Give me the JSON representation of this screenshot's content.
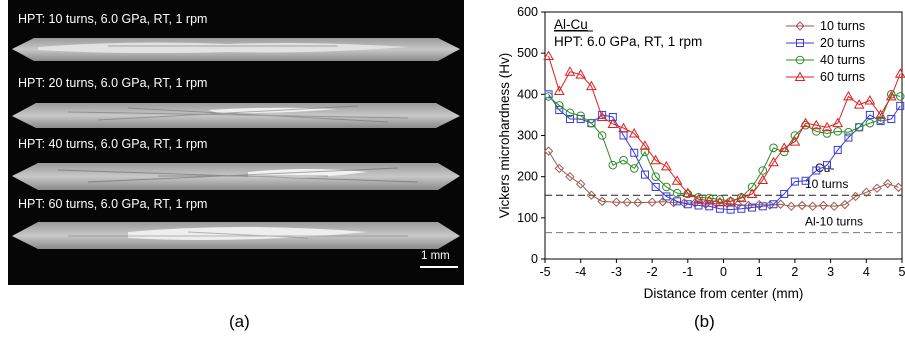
{
  "micrographs": {
    "strips": [
      {
        "label": "HPT: 10 turns, 6.0 GPa, RT, 1 rpm"
      },
      {
        "label": "HPT: 20 turns, 6.0 GPa, RT, 1 rpm"
      },
      {
        "label": "HPT: 40 turns, 6.0 GPa, RT, 1 rpm"
      },
      {
        "label": "HPT: 60 turns, 6.0 GPa, RT, 1 rpm"
      }
    ],
    "scale_bar_label": "1 mm",
    "panel_label": "(a)"
  },
  "chart_panel_label": "(b)",
  "chart_data": {
    "type": "line",
    "annotation": {
      "line1": "Al-Cu",
      "line2": "HPT: 6.0 GPa, RT, 1 rpm"
    },
    "xlabel": "Distance from center (mm)",
    "ylabel": "Vickers microhardness (Hv)",
    "xlim": [
      -5,
      5
    ],
    "ylim": [
      0,
      600
    ],
    "xticks": [
      -5,
      -4,
      -3,
      -2,
      -1,
      0,
      1,
      2,
      3,
      4,
      5
    ],
    "yticks": [
      0,
      100,
      200,
      300,
      400,
      500,
      600
    ],
    "grid": false,
    "legend_position": "top-right",
    "reference_lines": [
      {
        "label_line1": "Cu-",
        "label_line2": "10 turns",
        "y": 155
      },
      {
        "label_line1": "Al-10 turns",
        "label_line2": "",
        "y": 64
      }
    ],
    "series": [
      {
        "name": "10 turns",
        "color": "#9b5a52",
        "marker": "diamond",
        "x": [
          -4.9,
          -4.6,
          -4.3,
          -4.0,
          -3.7,
          -3.4,
          -3.0,
          -2.7,
          -2.4,
          -2.0,
          -1.7,
          -1.4,
          -1.1,
          -0.8,
          -0.5,
          -0.2,
          0.1,
          0.4,
          0.7,
          1.0,
          1.3,
          1.6,
          1.9,
          2.2,
          2.5,
          2.8,
          3.1,
          3.4,
          3.7,
          4.0,
          4.3,
          4.6,
          4.9
        ],
        "y": [
          262,
          220,
          200,
          182,
          155,
          140,
          138,
          138,
          137,
          138,
          139,
          137,
          136,
          136,
          133,
          135,
          135,
          132,
          130,
          132,
          131,
          133,
          128,
          130,
          128,
          130,
          128,
          132,
          152,
          162,
          172,
          183,
          174
        ]
      },
      {
        "name": "20 turns",
        "color": "#3a3ae0",
        "marker": "square",
        "x": [
          -4.9,
          -4.6,
          -4.3,
          -4.0,
          -3.7,
          -3.4,
          -3.1,
          -2.8,
          -2.5,
          -2.2,
          -1.9,
          -1.6,
          -1.3,
          -1.0,
          -0.7,
          -0.4,
          -0.1,
          0.2,
          0.5,
          0.8,
          1.1,
          1.4,
          1.7,
          2.0,
          2.3,
          2.6,
          2.9,
          3.2,
          3.5,
          3.8,
          4.1,
          4.4,
          4.7,
          4.95
        ],
        "y": [
          400,
          362,
          340,
          340,
          330,
          350,
          345,
          300,
          258,
          205,
          175,
          152,
          140,
          133,
          130,
          128,
          122,
          120,
          122,
          125,
          128,
          133,
          158,
          188,
          190,
          215,
          228,
          265,
          295,
          320,
          350,
          335,
          340,
          372
        ]
      },
      {
        "name": "40 turns",
        "color": "#2e8b2e",
        "marker": "circle",
        "x": [
          -4.9,
          -4.6,
          -4.3,
          -4.0,
          -3.7,
          -3.4,
          -3.1,
          -2.8,
          -2.5,
          -2.2,
          -1.9,
          -1.6,
          -1.3,
          -1.0,
          -0.7,
          -0.4,
          -0.1,
          0.2,
          0.5,
          0.8,
          1.1,
          1.4,
          1.7,
          2.0,
          2.3,
          2.6,
          2.9,
          3.2,
          3.5,
          3.8,
          4.1,
          4.4,
          4.7,
          4.95
        ],
        "y": [
          395,
          373,
          355,
          348,
          330,
          300,
          228,
          240,
          220,
          260,
          200,
          175,
          160,
          158,
          150,
          148,
          145,
          140,
          150,
          175,
          215,
          270,
          260,
          300,
          325,
          310,
          305,
          310,
          308,
          320,
          330,
          338,
          400,
          395
        ]
      },
      {
        "name": "60 turns",
        "color": "#e21f1f",
        "marker": "triangle",
        "x": [
          -4.9,
          -4.6,
          -4.3,
          -4.0,
          -3.7,
          -3.4,
          -3.1,
          -2.8,
          -2.5,
          -2.2,
          -1.9,
          -1.6,
          -1.3,
          -1.0,
          -0.7,
          -0.4,
          -0.1,
          0.2,
          0.5,
          0.8,
          1.1,
          1.4,
          1.7,
          2.0,
          2.3,
          2.6,
          2.9,
          3.2,
          3.5,
          3.8,
          4.1,
          4.4,
          4.7,
          4.95
        ],
        "y": [
          493,
          408,
          455,
          448,
          420,
          345,
          328,
          318,
          305,
          275,
          240,
          225,
          190,
          160,
          145,
          142,
          138,
          140,
          148,
          158,
          192,
          235,
          270,
          285,
          330,
          325,
          320,
          330,
          395,
          375,
          385,
          350,
          395,
          450
        ]
      }
    ]
  }
}
